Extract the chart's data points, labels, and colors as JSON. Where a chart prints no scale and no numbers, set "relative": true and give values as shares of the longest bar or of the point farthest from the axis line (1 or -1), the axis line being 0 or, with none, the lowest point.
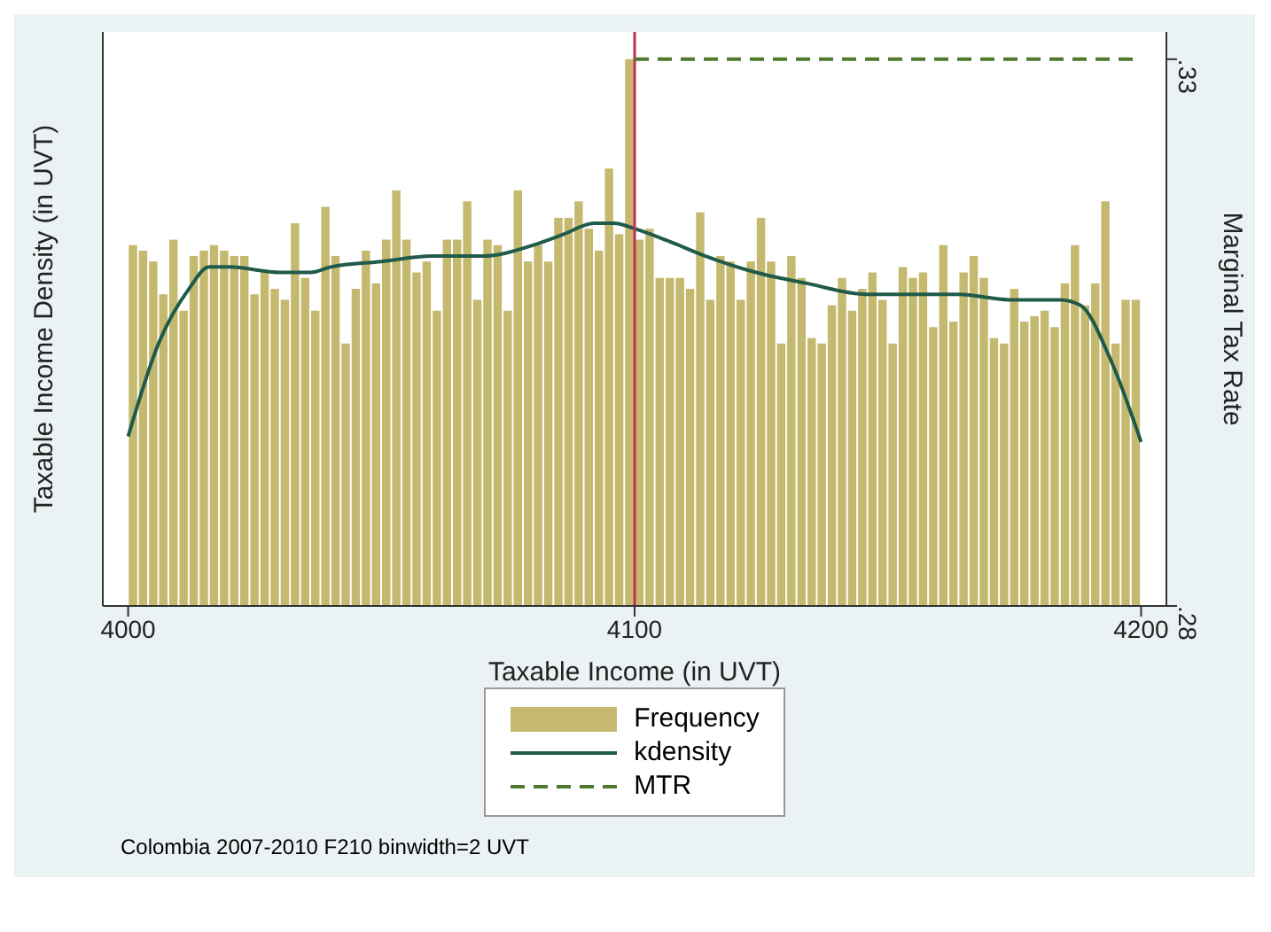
{
  "chart_data": {
    "type": "histogram",
    "relative": true,
    "xlabel": "Taxable Income (in UVT)",
    "ylabel": "Taxable Income Density (in UVT)",
    "y2label": "Marginal Tax Rate",
    "annotations": [
      "Colombia 2007-2010 F210 binwidth=2 UVT"
    ],
    "xlim": [
      3995,
      4205
    ],
    "xticks": [
      4000,
      4100,
      4200
    ],
    "y2lim": [
      0.28,
      0.3325
    ],
    "y2ticks": [
      {
        "value": 0.28,
        "label": ".28"
      },
      {
        "value": 0.33,
        "label": ".33"
      }
    ],
    "legend": "bottom",
    "bins": [
      4000,
      4002,
      4004,
      4006,
      4008,
      4010,
      4012,
      4014,
      4016,
      4018,
      4020,
      4022,
      4024,
      4026,
      4028,
      4030,
      4032,
      4034,
      4036,
      4038,
      4040,
      4042,
      4044,
      4046,
      4048,
      4050,
      4052,
      4054,
      4056,
      4058,
      4060,
      4062,
      4064,
      4066,
      4068,
      4070,
      4072,
      4074,
      4076,
      4078,
      4080,
      4082,
      4084,
      4086,
      4088,
      4090,
      4092,
      4094,
      4096,
      4098,
      4100,
      4102,
      4104,
      4106,
      4108,
      4110,
      4112,
      4114,
      4116,
      4118,
      4120,
      4122,
      4124,
      4126,
      4128,
      4130,
      4132,
      4134,
      4136,
      4138,
      4140,
      4142,
      4144,
      4146,
      4148,
      4150,
      4152,
      4154,
      4156,
      4158,
      4160,
      4162,
      4164,
      4166,
      4168,
      4170,
      4172,
      4174,
      4176,
      4178,
      4180,
      4182,
      4184,
      4186,
      4188,
      4190,
      4192,
      4194,
      4196,
      4198,
      4200
    ],
    "series": [
      {
        "name": "Frequency",
        "color": "#c4b96e",
        "values": [
          0.66,
          0.65,
          0.63,
          0.57,
          0.67,
          0.54,
          0.64,
          0.65,
          0.66,
          0.65,
          0.64,
          0.64,
          0.57,
          0.61,
          0.58,
          0.56,
          0.7,
          0.6,
          0.54,
          0.73,
          0.64,
          0.48,
          0.58,
          0.65,
          0.59,
          0.67,
          0.76,
          0.67,
          0.61,
          0.63,
          0.54,
          0.67,
          0.67,
          0.74,
          0.56,
          0.67,
          0.66,
          0.54,
          0.76,
          0.63,
          0.66,
          0.63,
          0.71,
          0.71,
          0.74,
          0.69,
          0.65,
          0.8,
          0.68,
          1,
          0.67,
          0.69,
          0.6,
          0.6,
          0.6,
          0.58,
          0.72,
          0.56,
          0.64,
          0.63,
          0.56,
          0.63,
          0.71,
          0.63,
          0.48,
          0.64,
          0.6,
          0.49,
          0.48,
          0.55,
          0.6,
          0.54,
          0.58,
          0.61,
          0.56,
          0.48,
          0.62,
          0.6,
          0.61,
          0.51,
          0.66,
          0.52,
          0.61,
          0.64,
          0.6,
          0.49,
          0.48,
          0.58,
          0.52,
          0.53,
          0.54,
          0.51,
          0.59,
          0.66,
          0.55,
          0.59,
          0.74,
          0.48,
          0.56,
          0.56
        ]
      },
      {
        "name": "kdensity",
        "type": "line",
        "color": "#1f5a4a",
        "line_style": "solid",
        "x": [
          4000,
          4006,
          4012,
          4016,
          4020,
          4030,
          4036,
          4040,
          4050,
          4060,
          4070,
          4080,
          4086,
          4092,
          4096,
          4100,
          4106,
          4114,
          4124,
          4134,
          4146,
          4154,
          4164,
          4174,
          4184,
          4188,
          4194,
          4200
        ],
        "values": [
          0.31,
          0.48,
          0.58,
          0.62,
          0.62,
          0.61,
          0.61,
          0.62,
          0.63,
          0.64,
          0.64,
          0.66,
          0.68,
          0.7,
          0.7,
          0.69,
          0.67,
          0.64,
          0.61,
          0.59,
          0.57,
          0.57,
          0.57,
          0.56,
          0.56,
          0.55,
          0.45,
          0.3
        ]
      },
      {
        "name": "MTR",
        "type": "line",
        "axis": "y2",
        "color": "#4f7a2e",
        "line_style": "dashed",
        "x": [
          4100,
          4200
        ],
        "values": [
          0.33,
          0.33
        ]
      }
    ],
    "ref_lines": [
      {
        "axis": "x",
        "value": 4100,
        "color": "#c0304a"
      }
    ]
  }
}
